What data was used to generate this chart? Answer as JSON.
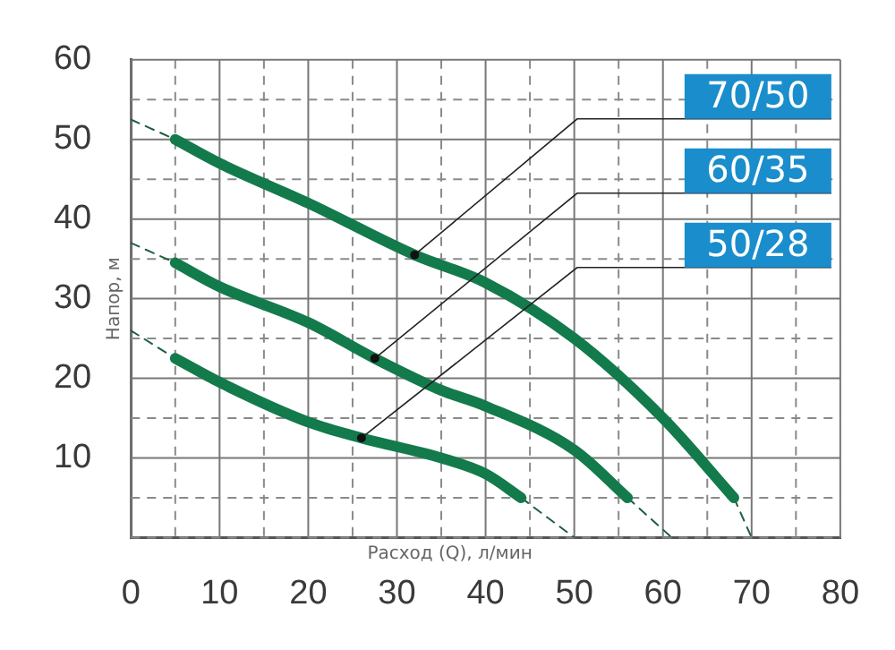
{
  "chart_data": {
    "type": "line",
    "xlabel": "Расход (Q), л/мин",
    "ylabel": "Напор, м",
    "xlim": [
      0,
      80
    ],
    "ylim": [
      0,
      60
    ],
    "xticks": [
      0,
      {
        "value": 5,
        "label": null
      },
      10,
      {
        "value": 15,
        "label": null
      },
      20,
      {
        "value": 25,
        "label": null
      },
      30,
      {
        "value": 35,
        "label": null
      },
      40,
      {
        "value": 45,
        "label": null
      },
      50,
      {
        "value": 55,
        "label": null
      },
      60,
      {
        "value": 65,
        "label": null
      },
      70,
      {
        "value": 75,
        "label": null
      },
      80
    ],
    "yticks": [
      {
        "value": 0,
        "label": null
      },
      {
        "value": 5,
        "label": null
      },
      10,
      {
        "value": 15,
        "label": null
      },
      20,
      {
        "value": 25,
        "label": null
      },
      30,
      {
        "value": 35,
        "label": null
      },
      40,
      {
        "value": 45,
        "label": null
      },
      50,
      {
        "value": 55,
        "label": null
      },
      60
    ],
    "grid": true,
    "legend": false,
    "series": [
      {
        "name": "70/50",
        "color": "#137a4c",
        "x": [
          5,
          10,
          20,
          32,
          40,
          50,
          60,
          68
        ],
        "values": [
          50,
          47,
          42,
          35.5,
          32,
          25,
          15,
          5
        ]
      },
      {
        "name": "60/35",
        "color": "#137a4c",
        "x": [
          5,
          10,
          20,
          27.5,
          35,
          40,
          50,
          56
        ],
        "values": [
          34.5,
          31.5,
          27,
          22.5,
          18.5,
          16.5,
          11,
          5
        ]
      },
      {
        "name": "50/28",
        "color": "#137a4c",
        "x": [
          5,
          10,
          20,
          26,
          35,
          40,
          44
        ],
        "values": [
          22.5,
          19.5,
          14.5,
          12.5,
          10,
          8,
          5
        ]
      },
      {
        "color": "#1d5e3e",
        "line_style": "dashed",
        "x": [
          0,
          5
        ],
        "values": [
          52.5,
          50
        ]
      },
      {
        "color": "#1d5e3e",
        "line_style": "dashed",
        "x": [
          68,
          70
        ],
        "values": [
          5,
          0
        ]
      },
      {
        "color": "#1d5e3e",
        "line_style": "dashed",
        "x": [
          0,
          5
        ],
        "values": [
          37,
          34.5
        ]
      },
      {
        "color": "#1d5e3e",
        "line_style": "dashed",
        "x": [
          56,
          61
        ],
        "values": [
          5,
          0
        ]
      },
      {
        "color": "#1d5e3e",
        "line_style": "dashed",
        "x": [
          0,
          5
        ],
        "values": [
          26,
          22.5
        ]
      },
      {
        "color": "#1d5e3e",
        "line_style": "dashed",
        "x": [
          44,
          50
        ],
        "values": [
          5,
          0
        ]
      }
    ]
  }
}
